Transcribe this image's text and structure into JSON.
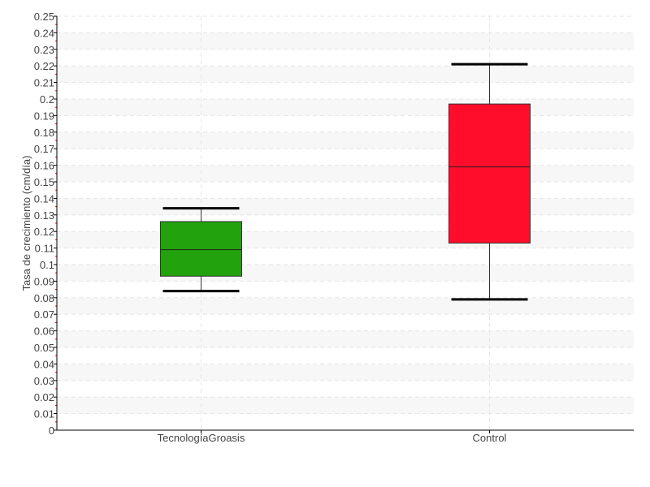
{
  "chart_data": {
    "type": "boxplot",
    "title": "",
    "xlabel": "",
    "ylabel": "Tasa de crecimiento (cm/día)",
    "ylim": [
      0,
      0.25
    ],
    "ytick_step": 0.01,
    "grid": true,
    "categories": [
      "TecnologíaGroasis",
      "Control"
    ],
    "boxes": [
      {
        "category": "TecnologíaGroasis",
        "whisker_low": 0.084,
        "q1": 0.093,
        "median": 0.109,
        "q3": 0.126,
        "whisker_high": 0.134,
        "color": "#22a20c"
      },
      {
        "category": "Control",
        "whisker_low": 0.079,
        "q1": 0.113,
        "median": 0.159,
        "q3": 0.197,
        "whisker_high": 0.221,
        "color": "#ff0d2a"
      }
    ]
  }
}
